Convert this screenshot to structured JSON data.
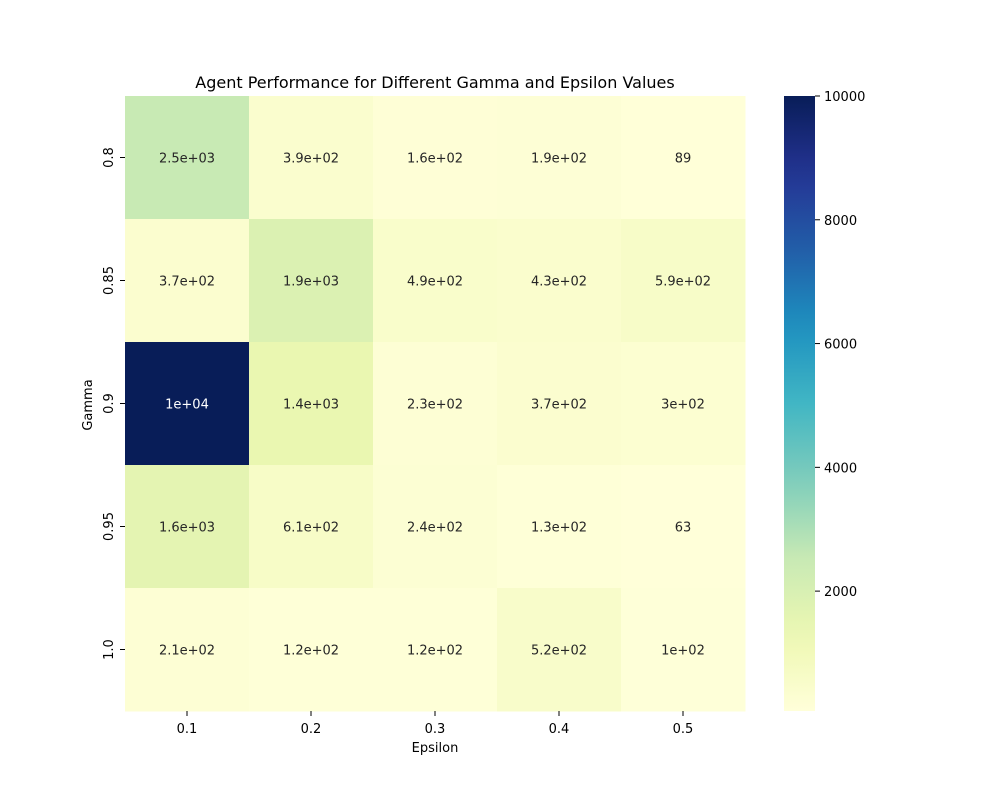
{
  "chart_data": {
    "type": "heatmap",
    "title": "Agent Performance for Different Gamma and Epsilon Values",
    "xlabel": "Epsilon",
    "ylabel": "Gamma",
    "x_categories": [
      "0.1",
      "0.2",
      "0.3",
      "0.4",
      "0.5"
    ],
    "y_categories": [
      "0.8",
      "0.85",
      "0.9",
      "0.95",
      "1.0"
    ],
    "values": [
      [
        2500,
        390,
        160,
        190,
        89
      ],
      [
        370,
        1900,
        490,
        430,
        590
      ],
      [
        10000,
        1400,
        230,
        370,
        300
      ],
      [
        1600,
        610,
        240,
        130,
        63
      ],
      [
        210,
        120,
        120,
        520,
        100
      ]
    ],
    "annotations": [
      [
        "2.5e+03",
        "3.9e+02",
        "1.6e+02",
        "1.9e+02",
        "89"
      ],
      [
        "3.7e+02",
        "1.9e+03",
        "4.9e+02",
        "4.3e+02",
        "5.9e+02"
      ],
      [
        "1e+04",
        "1.4e+03",
        "2.3e+02",
        "3.7e+02",
        "3e+02"
      ],
      [
        "1.6e+03",
        "6.1e+02",
        "2.4e+02",
        "1.3e+02",
        "63"
      ],
      [
        "2.1e+02",
        "1.2e+02",
        "1.2e+02",
        "5.2e+02",
        "1e+02"
      ]
    ],
    "colormap": "YlGnBu",
    "colorbar": {
      "range": [
        63,
        10000
      ],
      "ticks": [
        2000,
        4000,
        6000,
        8000,
        10000
      ],
      "tick_labels": [
        "2000",
        "4000",
        "6000",
        "8000",
        "10000"
      ]
    },
    "colors": {
      "text_dark": "#262626",
      "text_light": "#ffffff"
    }
  }
}
